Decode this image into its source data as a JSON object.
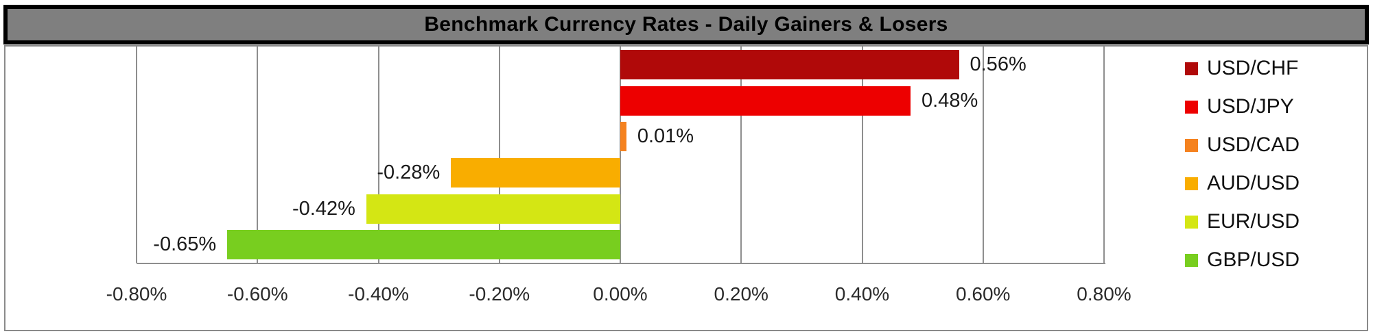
{
  "title": "Benchmark Currency Rates - Daily Gainers & Losers",
  "colors": {
    "title_bar_bg": "#7F7F7F",
    "title_bar_border": "#000000",
    "chart_border": "#8A8A8A",
    "gridline": "#8E8E8E",
    "plot_bg": "#FFFFFF"
  },
  "chart_data": {
    "type": "bar",
    "orientation": "horizontal",
    "title": "Benchmark Currency Rates - Daily Gainers & Losers",
    "categories": [
      "USD/CHF",
      "USD/JPY",
      "USD/CAD",
      "AUD/USD",
      "EUR/USD",
      "GBP/USD"
    ],
    "values": [
      0.56,
      0.48,
      0.01,
      -0.28,
      -0.42,
      -0.65
    ],
    "value_labels": [
      "0.56%",
      "0.48%",
      "0.01%",
      "-0.28%",
      "-0.42%",
      "-0.65%"
    ],
    "bar_colors": [
      "#B00909",
      "#ED0000",
      "#F5821F",
      "#F9AD00",
      "#D4E614",
      "#78CE1F"
    ],
    "x_ticks": [
      "-0.80%",
      "-0.60%",
      "-0.40%",
      "-0.20%",
      "0.00%",
      "0.20%",
      "0.40%",
      "0.60%",
      "0.80%"
    ],
    "x_tick_values": [
      -0.8,
      -0.6,
      -0.4,
      -0.2,
      0.0,
      0.2,
      0.4,
      0.6,
      0.8
    ],
    "xlim": [
      -0.8,
      0.8
    ],
    "xlabel": "",
    "ylabel": "",
    "grid": true,
    "legend_position": "right",
    "legend": [
      {
        "label": "USD/CHF",
        "color": "#B00909"
      },
      {
        "label": "USD/JPY",
        "color": "#ED0000"
      },
      {
        "label": "USD/CAD",
        "color": "#F5821F"
      },
      {
        "label": "AUD/USD",
        "color": "#F9AD00"
      },
      {
        "label": "EUR/USD",
        "color": "#D4E614"
      },
      {
        "label": "GBP/USD",
        "color": "#78CE1F"
      }
    ]
  }
}
